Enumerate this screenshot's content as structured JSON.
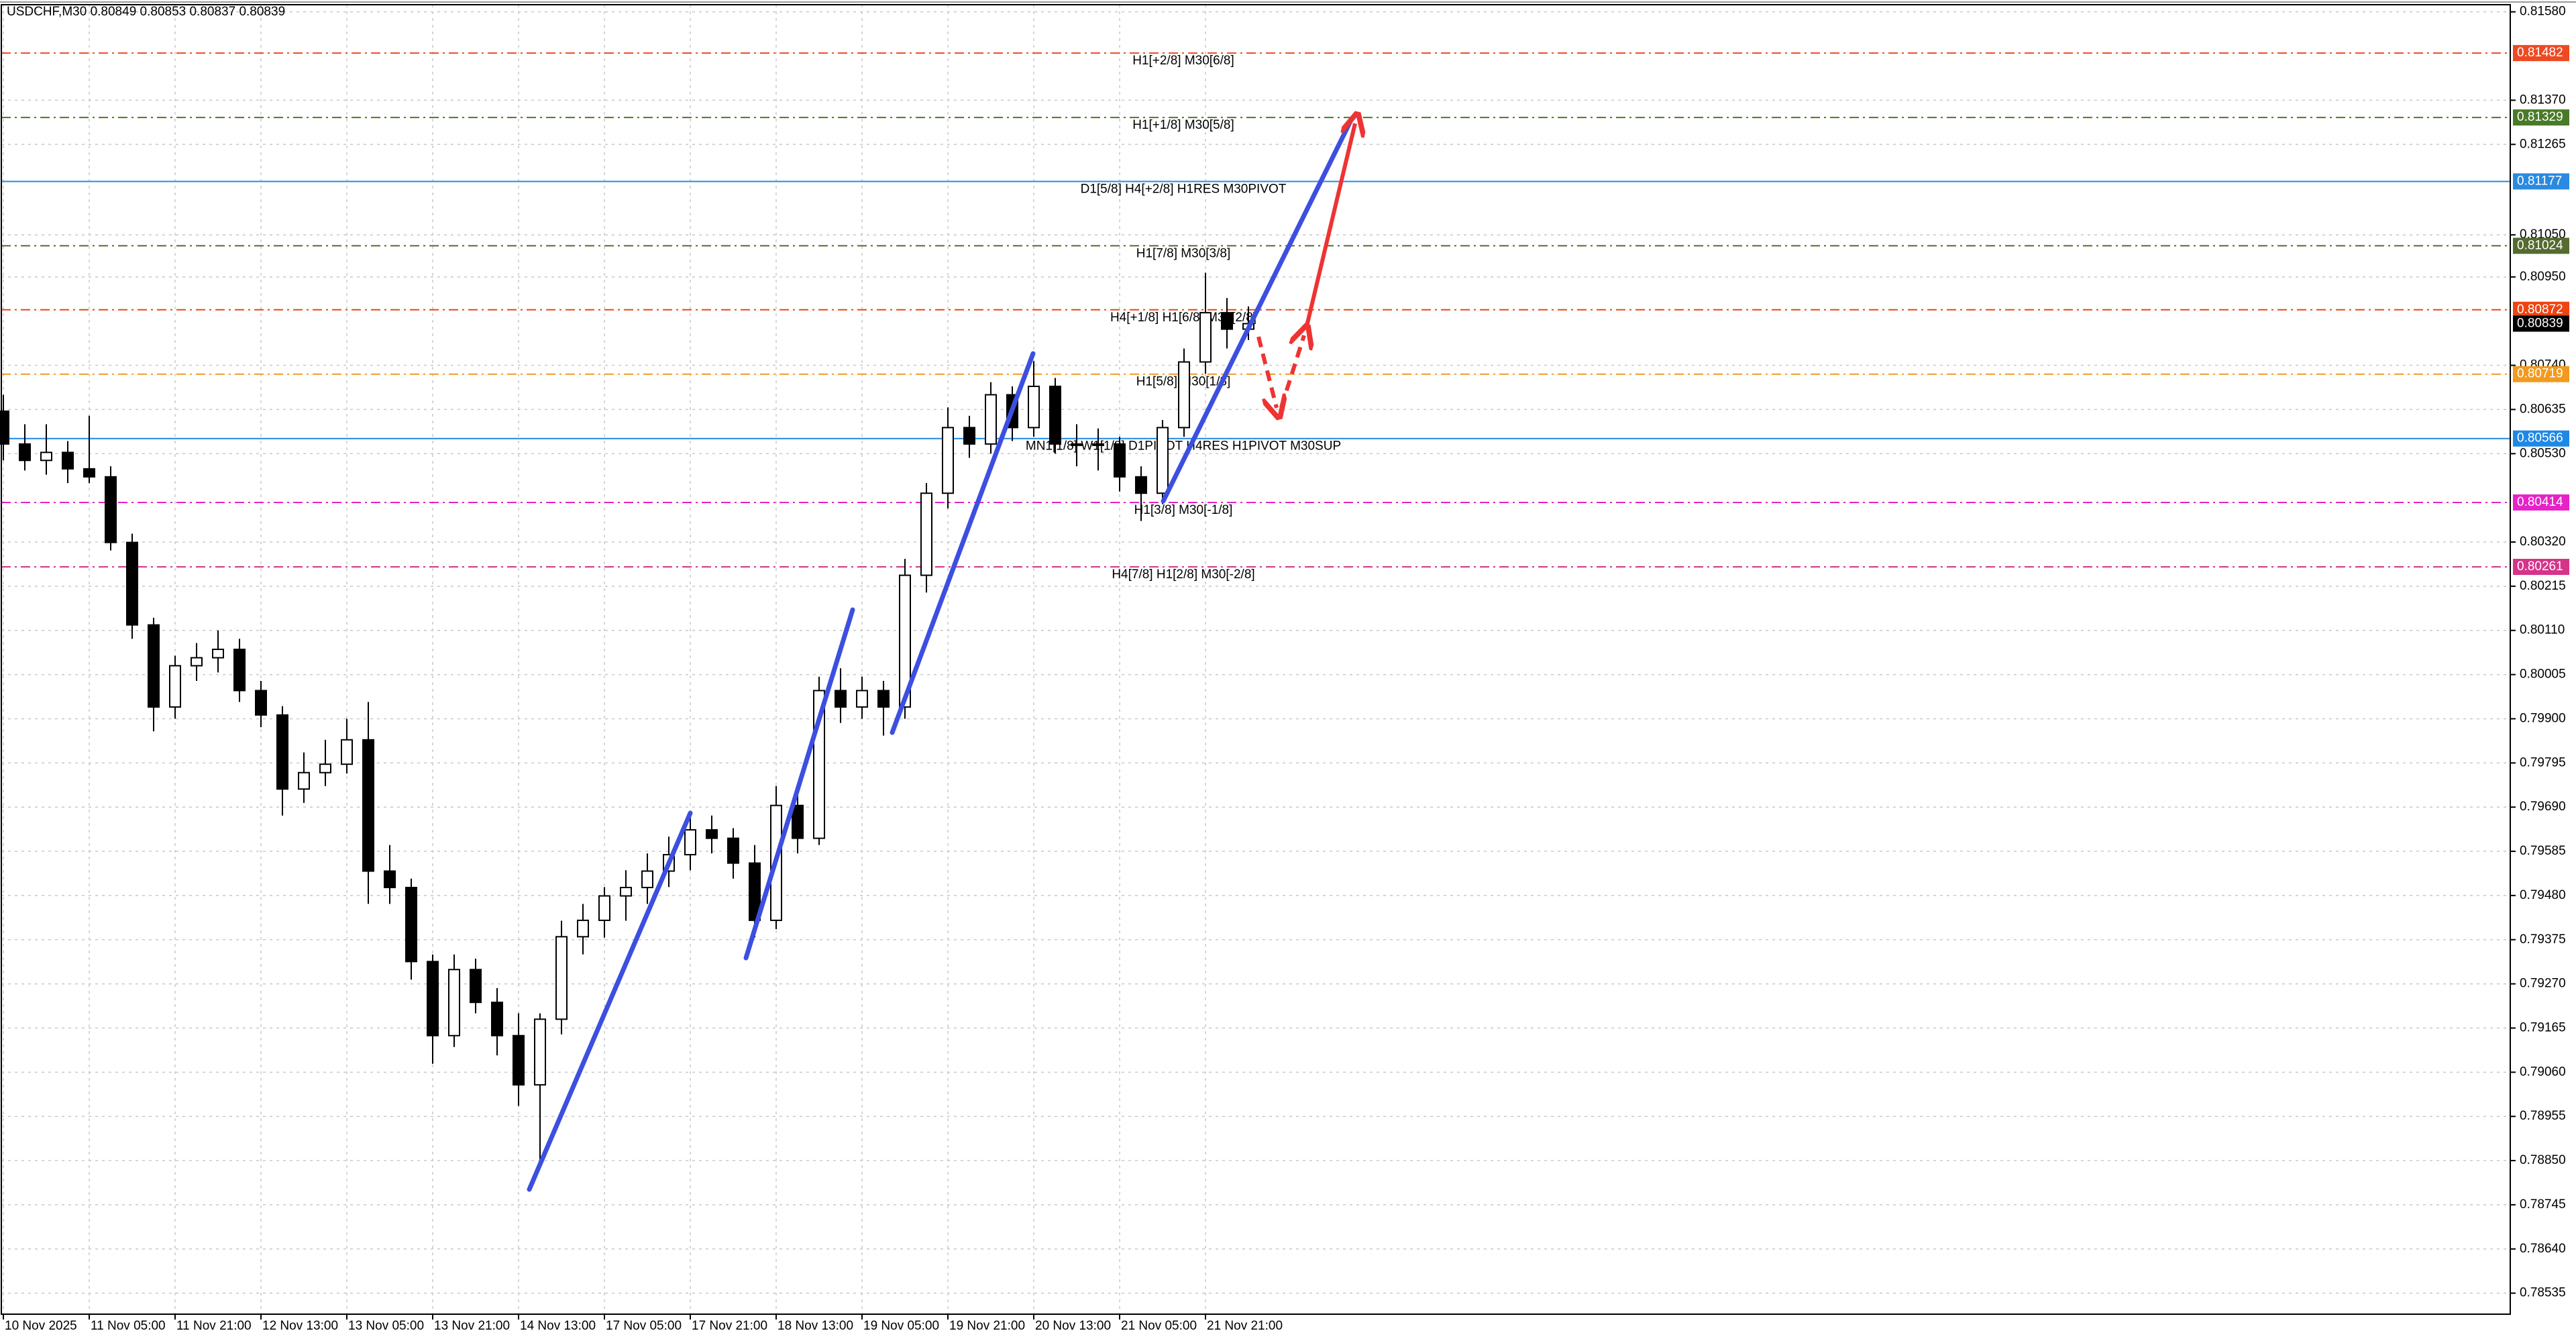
{
  "chart_data": {
    "type": "candlestick",
    "title": "USDCHF,M30  0.80849 0.80853 0.80837 0.80839",
    "ylim": [
      0.78485,
      0.81597
    ],
    "yticks": [
      {
        "value": 0.8158,
        "label": "0.81580"
      },
      {
        "value": 0.8137,
        "label": "0.81370"
      },
      0.81265,
      {
        "value": 0.8105,
        "label": "0.81050"
      },
      {
        "value": 0.8095,
        "label": "0.80950"
      },
      {
        "value": 0.8074,
        "label": "0.80740"
      },
      0.80635,
      {
        "value": 0.8053,
        "label": "0.80530"
      },
      {
        "value": 0.8032,
        "label": "0.80320"
      },
      0.80215,
      {
        "value": 0.8011,
        "label": "0.80110"
      },
      0.80005,
      {
        "value": 0.799,
        "label": "0.79900"
      },
      0.79795,
      {
        "value": 0.7969,
        "label": "0.79690"
      },
      0.79585,
      {
        "value": 0.7948,
        "label": "0.79480"
      },
      0.79375,
      {
        "value": 0.7927,
        "label": "0.79270"
      },
      0.79165,
      {
        "value": 0.7906,
        "label": "0.79060"
      },
      0.78955,
      {
        "value": 0.7885,
        "label": "0.78850"
      },
      0.78745,
      {
        "value": 0.7864,
        "label": "0.78640"
      },
      0.78535
    ],
    "xticks": [
      "10 Nov 2025",
      "11 Nov 05:00",
      "11 Nov 21:00",
      "12 Nov 13:00",
      "13 Nov 05:00",
      "13 Nov 21:00",
      "14 Nov 13:00",
      "17 Nov 05:00",
      "17 Nov 21:00",
      "18 Nov 13:00",
      "19 Nov 05:00",
      "19 Nov 21:00",
      "20 Nov 13:00",
      "21 Nov 05:00",
      "21 Nov 21:00"
    ],
    "grid": true,
    "up_color": "#ffffff",
    "down_color": "#000000",
    "open": [
      0.80631,
      0.80553,
      0.80514,
      0.80533,
      0.80494,
      0.80475,
      0.80319,
      0.80123,
      0.79928,
      0.80026,
      0.80045,
      0.80065,
      0.79967,
      0.79909,
      0.79733,
      0.79772,
      0.79792,
      0.7985,
      0.79538,
      0.79499,
      0.79323,
      0.79147,
      0.79304,
      0.79226,
      0.79147,
      0.7903,
      0.79186,
      0.79382,
      0.79421,
      0.79479,
      0.79499,
      0.79538,
      0.79577,
      0.79636,
      0.79616,
      0.79557,
      0.79421,
      0.79694,
      0.79616,
      0.79967,
      0.79928,
      0.79967,
      0.79928,
      0.80241,
      0.80436,
      0.80592,
      0.80553,
      0.8067,
      0.80592,
      0.8069,
      0.80553,
      0.80553,
      0.80553,
      0.80475,
      0.80436,
      0.80592,
      0.80748,
      0.80865,
      0.80826
    ],
    "high": [
      0.8067,
      0.806,
      0.806,
      0.8056,
      0.8062,
      0.805,
      0.8034,
      0.8014,
      0.8005,
      0.8008,
      0.8011,
      0.8009,
      0.7999,
      0.7993,
      0.7982,
      0.7985,
      0.799,
      0.7994,
      0.796,
      0.7952,
      0.7934,
      0.7934,
      0.7933,
      0.7926,
      0.792,
      0.792,
      0.7942,
      0.7946,
      0.795,
      0.7954,
      0.7958,
      0.7962,
      0.7968,
      0.7967,
      0.7964,
      0.796,
      0.7974,
      0.7972,
      0.8,
      0.8002,
      0.8,
      0.7999,
      0.8028,
      0.8046,
      0.8064,
      0.8062,
      0.807,
      0.8069,
      0.8075,
      0.8071,
      0.806,
      0.8059,
      0.8057,
      0.805,
      0.8061,
      0.8078,
      0.8096,
      0.809,
      0.8088
    ],
    "low": [
      0.80514,
      0.8049,
      0.8048,
      0.8046,
      0.8046,
      0.803,
      0.8009,
      0.7987,
      0.799,
      0.7999,
      0.8001,
      0.7994,
      0.7988,
      0.7967,
      0.797,
      0.7974,
      0.7977,
      0.7946,
      0.7946,
      0.7928,
      0.7908,
      0.7912,
      0.792,
      0.791,
      0.7898,
      0.78835,
      0.7915,
      0.7934,
      0.7938,
      0.7942,
      0.7946,
      0.795,
      0.7954,
      0.7958,
      0.7952,
      0.7938,
      0.794,
      0.7958,
      0.796,
      0.7989,
      0.799,
      0.7986,
      0.799,
      0.802,
      0.804,
      0.8052,
      0.8053,
      0.8056,
      0.8057,
      0.8053,
      0.805,
      0.8049,
      0.8044,
      0.8037,
      0.8041,
      0.8057,
      0.8072,
      0.8078,
      0.808
    ],
    "close": [
      0.80553,
      0.80514,
      0.80533,
      0.80494,
      0.80475,
      0.80319,
      0.80123,
      0.79928,
      0.80026,
      0.80045,
      0.80065,
      0.79967,
      0.79909,
      0.79733,
      0.79772,
      0.79792,
      0.7985,
      0.79538,
      0.79499,
      0.79323,
      0.79147,
      0.79304,
      0.79226,
      0.79147,
      0.7903,
      0.79186,
      0.79382,
      0.79421,
      0.79479,
      0.79499,
      0.79538,
      0.79577,
      0.79636,
      0.79616,
      0.79557,
      0.79421,
      0.79694,
      0.79616,
      0.79967,
      0.79928,
      0.79967,
      0.79928,
      0.80241,
      0.80436,
      0.80592,
      0.80553,
      0.8067,
      0.80592,
      0.8069,
      0.80553,
      0.80553,
      0.80553,
      0.80475,
      0.80436,
      0.80592,
      0.80748,
      0.80865,
      0.80826,
      0.80839
    ],
    "levels": [
      {
        "name": "H1[+2/8] M30[6/8]",
        "value": 0.81482,
        "color": "#ee4a22",
        "style": "dashdot"
      },
      {
        "name": "H1[+1/8] M30[5/8]",
        "value": 0.81329,
        "color": "#4a7a28",
        "style": "dashdot"
      },
      {
        "name": "D1[5/8] H4[+2/8] H1RES M30PIVOT",
        "value": 0.81177,
        "color": "#2a8ae0",
        "style": "solid"
      },
      {
        "name": "H1[7/8] M30[3/8]",
        "value": 0.81024,
        "color": "#556b2f",
        "style": "dashdot"
      },
      {
        "name": "H4[+1/8] H1[6/8] M30[2/8]",
        "value": 0.80872,
        "color": "#ee4411",
        "style": "dashdot"
      },
      {
        "name": "H1[5/8] M30[1/8]",
        "value": 0.80719,
        "color": "#f29a1e",
        "style": "dashdot"
      },
      {
        "name": "MN1[1/8] W1[1/8] D1PIVOT H4RES H1PIVOT M30SUP",
        "value": 0.80566,
        "color": "#1e88e5",
        "style": "solid"
      },
      {
        "name": "H1[3/8] M30[-1/8]",
        "value": 0.80414,
        "color": "#e622c8",
        "style": "dashdot"
      },
      {
        "name": "H4[7/8] H1[2/8] M30[-2/8]",
        "value": 0.80261,
        "color": "#d6338a",
        "style": "dashdot"
      }
    ]
  }
}
